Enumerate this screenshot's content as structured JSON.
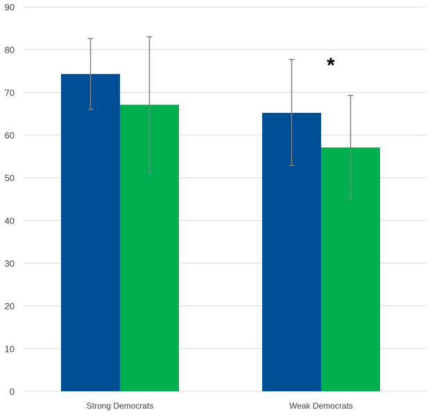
{
  "chart_data": {
    "type": "bar",
    "categories": [
      "Strong Democrats",
      "Weak Democrats"
    ],
    "series": [
      {
        "values": [
          74.3,
          65.2
        ],
        "error_low": [
          66.0,
          52.9
        ],
        "error_high": [
          82.6,
          77.7
        ],
        "color": "#004f96"
      },
      {
        "values": [
          67.1,
          57.1
        ],
        "error_low": [
          51.2,
          45.0
        ],
        "error_high": [
          83.0,
          69.3
        ],
        "color": "#00b04f"
      }
    ],
    "ylim": [
      0,
      90
    ],
    "yticks": [
      0,
      10,
      20,
      30,
      40,
      50,
      60,
      70,
      80,
      90
    ],
    "grid": true,
    "annotations": [
      {
        "text": "*",
        "category": "Weak Democrats",
        "y": 78
      }
    ],
    "colors": {
      "grid": "#d9d9d9",
      "error_bar": "#7f7f7f",
      "axis_text": "#404040"
    }
  }
}
